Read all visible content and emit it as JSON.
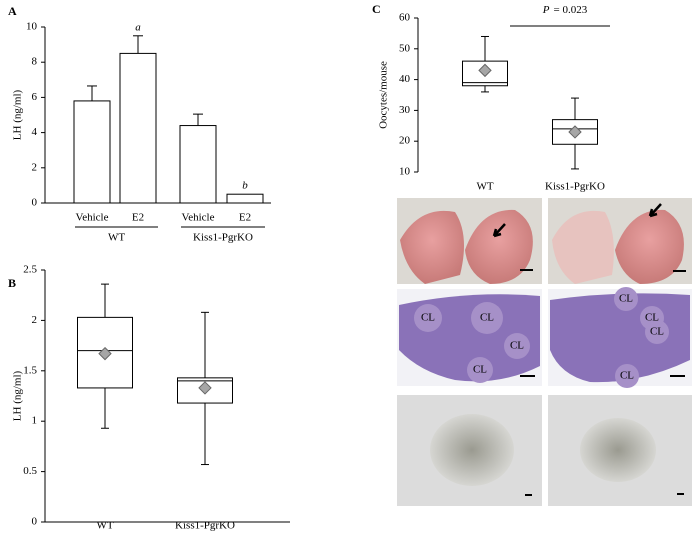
{
  "chart_data": [
    {
      "type": "bar",
      "panel": "A",
      "y_label": "LH (ng/ml)",
      "categories": [
        "Vehicle",
        "E2",
        "Vehicle",
        "E2"
      ],
      "values": [
        5.8,
        8.5,
        4.4,
        0.5
      ],
      "errors": [
        0.85,
        1.0,
        0.65,
        null
      ],
      "bar_annotations": [
        null,
        "a",
        null,
        "b"
      ],
      "group_labels": [
        "WT",
        "Kiss1-PgrKO"
      ],
      "color": "#ffffff",
      "ylim": [
        0,
        10
      ],
      "yticks": [
        0,
        2,
        4,
        6,
        8,
        10
      ]
    },
    {
      "type": "box",
      "panel": "B",
      "y_label": "LH (ng/ml)",
      "categories": [
        "WT",
        "Kiss1-PgrKO"
      ],
      "min": [
        0.93,
        0.57
      ],
      "q1": [
        1.33,
        1.18
      ],
      "median": [
        1.7,
        1.4
      ],
      "q3": [
        2.03,
        1.43
      ],
      "max": [
        2.36,
        2.08
      ],
      "mean": [
        1.67,
        1.33
      ],
      "color": "#ffffff",
      "mean_color": "#a6a6a6",
      "ylim": [
        0,
        2.5
      ],
      "yticks": [
        0,
        0.5,
        1,
        1.5,
        2,
        2.5
      ]
    },
    {
      "type": "box",
      "panel": "C",
      "y_label": "Oocytes/mouse",
      "categories": [
        "WT",
        "Kiss1-PgrKO"
      ],
      "min": [
        36,
        11
      ],
      "q1": [
        38,
        19
      ],
      "median": [
        39,
        24
      ],
      "q3": [
        46,
        27
      ],
      "max": [
        54,
        34
      ],
      "mean": [
        43,
        23
      ],
      "annotation_symbol": "P",
      "annotation_text": "= 0.023",
      "color": "#ffffff",
      "mean_color": "#a6a6a6",
      "ylim": [
        10,
        60
      ],
      "yticks": [
        10,
        20,
        30,
        40,
        50,
        60
      ]
    }
  ],
  "photos": {
    "histology_labels_wt": [
      "CL",
      "CL",
      "CL",
      "CL"
    ],
    "histology_labels_kiss1_pgrko": [
      "CL",
      "CL",
      "CL",
      "CL"
    ]
  }
}
